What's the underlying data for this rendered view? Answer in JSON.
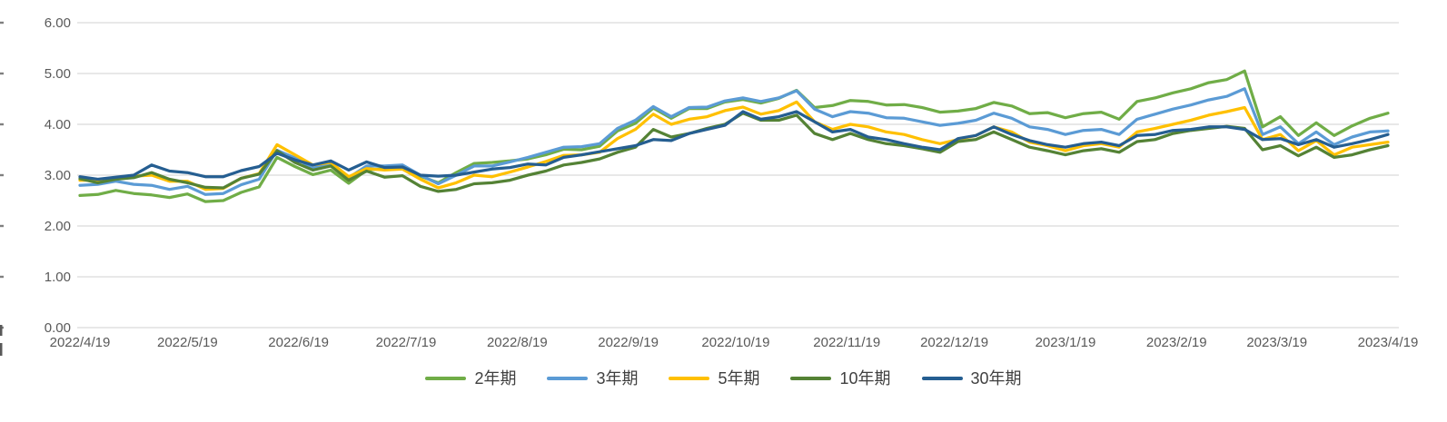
{
  "chart_data": {
    "type": "line",
    "title": "",
    "xlabel": "",
    "ylabel": "",
    "ylim": [
      0,
      6
    ],
    "grid": "horizontal",
    "legend_position": "bottom",
    "y_tick_labels": [
      "6.00",
      "5.00",
      "4.00",
      "3.00",
      "2.00",
      "1.00",
      "0.00"
    ],
    "x_tick_labels": [
      "2022/4/19",
      "2022/5/19",
      "2022/6/19",
      "2022/7/19",
      "2022/8/19",
      "2022/9/19",
      "2022/10/19",
      "2022/11/19",
      "2022/12/19",
      "2023/1/19",
      "2023/2/19",
      "2023/3/19",
      "2023/4/19"
    ],
    "x_axis_span_days": 365,
    "tick_day_offsets": [
      0,
      30,
      61,
      91,
      122,
      153,
      183,
      214,
      244,
      275,
      306,
      334,
      365
    ],
    "sample_interval_days": 5,
    "gridline_color": "#D9D9D9",
    "axis_text_color": "#595959",
    "legend_text_color": "#404040",
    "series": [
      {
        "name": "2年期",
        "color": "#70AD47",
        "values": [
          2.6,
          2.62,
          2.7,
          2.64,
          2.61,
          2.56,
          2.63,
          2.48,
          2.5,
          2.66,
          2.77,
          3.35,
          3.17,
          3.01,
          3.1,
          2.84,
          3.1,
          3.13,
          3.17,
          2.98,
          2.85,
          3.05,
          3.23,
          3.25,
          3.28,
          3.32,
          3.4,
          3.51,
          3.5,
          3.57,
          3.87,
          4.02,
          4.32,
          4.12,
          4.31,
          4.31,
          4.44,
          4.49,
          4.42,
          4.51,
          4.67,
          4.33,
          4.37,
          4.47,
          4.45,
          4.38,
          4.39,
          4.33,
          4.24,
          4.26,
          4.31,
          4.43,
          4.36,
          4.21,
          4.23,
          4.13,
          4.21,
          4.24,
          4.1,
          4.45,
          4.52,
          4.62,
          4.7,
          4.82,
          4.88,
          5.05,
          3.95,
          4.15,
          3.78,
          4.03,
          3.78,
          3.97,
          4.12,
          4.22
        ]
      },
      {
        "name": "3年期",
        "color": "#5B9BD5",
        "values": [
          2.8,
          2.82,
          2.88,
          2.82,
          2.8,
          2.72,
          2.78,
          2.62,
          2.64,
          2.81,
          2.92,
          3.49,
          3.34,
          3.14,
          3.22,
          2.95,
          3.18,
          3.18,
          3.2,
          3.0,
          2.83,
          3.0,
          3.18,
          3.18,
          3.26,
          3.35,
          3.45,
          3.55,
          3.56,
          3.62,
          3.92,
          4.08,
          4.35,
          4.15,
          4.33,
          4.34,
          4.46,
          4.52,
          4.45,
          4.52,
          4.66,
          4.3,
          4.15,
          4.25,
          4.22,
          4.13,
          4.12,
          4.05,
          3.98,
          4.02,
          4.08,
          4.22,
          4.12,
          3.95,
          3.9,
          3.8,
          3.88,
          3.9,
          3.8,
          4.1,
          4.2,
          4.3,
          4.38,
          4.48,
          4.55,
          4.7,
          3.8,
          3.95,
          3.62,
          3.85,
          3.6,
          3.75,
          3.85,
          3.87
        ]
      },
      {
        "name": "5年期",
        "color": "#FFC000",
        "values": [
          2.9,
          2.9,
          2.95,
          2.98,
          3.0,
          2.88,
          2.88,
          2.72,
          2.74,
          2.94,
          3.03,
          3.6,
          3.4,
          3.2,
          3.25,
          2.97,
          3.13,
          3.1,
          3.12,
          2.92,
          2.75,
          2.85,
          3.0,
          2.97,
          3.06,
          3.16,
          3.27,
          3.39,
          3.4,
          3.45,
          3.72,
          3.9,
          4.2,
          4.0,
          4.1,
          4.15,
          4.27,
          4.34,
          4.2,
          4.27,
          4.44,
          4.05,
          3.9,
          4.0,
          3.95,
          3.85,
          3.8,
          3.7,
          3.62,
          3.7,
          3.78,
          3.95,
          3.85,
          3.65,
          3.58,
          3.48,
          3.58,
          3.62,
          3.55,
          3.85,
          3.92,
          4.0,
          4.08,
          4.18,
          4.25,
          4.33,
          3.7,
          3.8,
          3.48,
          3.68,
          3.4,
          3.55,
          3.6,
          3.65
        ]
      },
      {
        "name": "10年期",
        "color": "#548235",
        "values": [
          2.93,
          2.85,
          2.92,
          2.95,
          3.05,
          2.92,
          2.85,
          2.76,
          2.75,
          2.94,
          3.02,
          3.48,
          3.25,
          3.1,
          3.18,
          2.9,
          3.08,
          2.96,
          2.99,
          2.78,
          2.68,
          2.72,
          2.83,
          2.85,
          2.9,
          3.0,
          3.08,
          3.2,
          3.25,
          3.32,
          3.45,
          3.55,
          3.9,
          3.75,
          3.82,
          3.92,
          4.0,
          4.22,
          4.08,
          4.08,
          4.18,
          3.82,
          3.7,
          3.82,
          3.7,
          3.62,
          3.58,
          3.52,
          3.45,
          3.66,
          3.7,
          3.85,
          3.7,
          3.55,
          3.48,
          3.4,
          3.48,
          3.52,
          3.45,
          3.66,
          3.7,
          3.82,
          3.88,
          3.92,
          3.96,
          3.92,
          3.5,
          3.58,
          3.38,
          3.55,
          3.35,
          3.4,
          3.5,
          3.58
        ]
      },
      {
        "name": "30年期",
        "color": "#255E91",
        "values": [
          2.97,
          2.92,
          2.96,
          3.0,
          3.2,
          3.08,
          3.05,
          2.97,
          2.97,
          3.09,
          3.17,
          3.43,
          3.3,
          3.2,
          3.28,
          3.1,
          3.26,
          3.15,
          3.16,
          3.0,
          2.98,
          3.0,
          3.06,
          3.12,
          3.15,
          3.22,
          3.2,
          3.35,
          3.4,
          3.46,
          3.52,
          3.58,
          3.7,
          3.68,
          3.82,
          3.9,
          3.98,
          4.25,
          4.1,
          4.15,
          4.25,
          4.05,
          3.85,
          3.9,
          3.75,
          3.7,
          3.62,
          3.55,
          3.5,
          3.72,
          3.78,
          3.95,
          3.8,
          3.68,
          3.6,
          3.55,
          3.62,
          3.65,
          3.58,
          3.78,
          3.8,
          3.88,
          3.9,
          3.95,
          3.95,
          3.9,
          3.7,
          3.72,
          3.6,
          3.7,
          3.55,
          3.62,
          3.7,
          3.8
        ]
      }
    ]
  }
}
